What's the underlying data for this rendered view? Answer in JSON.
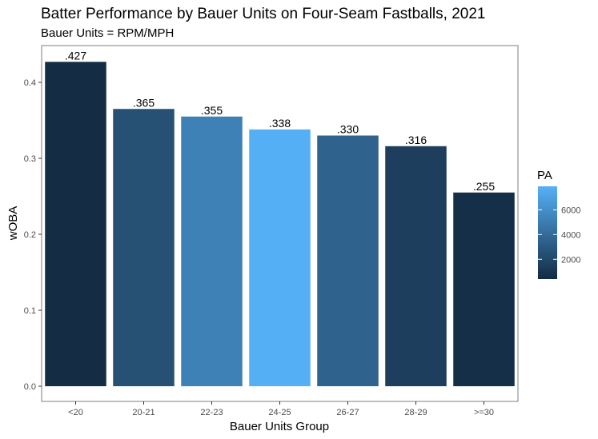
{
  "chart_data": {
    "type": "bar",
    "title": "Batter Performance by Bauer Units on Four-Seam Fastballs, 2021",
    "subtitle": "Bauer Units = RPM/MPH",
    "xlabel": "Bauer Units Group",
    "ylabel": "wOBA",
    "ylim": [
      0,
      0.45
    ],
    "y_ticks": [
      0.0,
      0.1,
      0.2,
      0.3,
      0.4
    ],
    "y_tick_labels": [
      "0.0",
      "0.1",
      "0.2",
      "0.3",
      "0.4"
    ],
    "grid": false,
    "categories": [
      "<20",
      "20-21",
      "22-23",
      "24-25",
      "26-27",
      "28-29",
      ">=30"
    ],
    "values": [
      0.427,
      0.365,
      0.355,
      0.338,
      0.33,
      0.316,
      0.255
    ],
    "data_labels": [
      ".427",
      ".365",
      ".355",
      ".338",
      ".330",
      ".316",
      ".255"
    ],
    "fill_variable": "PA",
    "fill_values": [
      500,
      2500,
      5200,
      7800,
      3500,
      1500,
      600
    ],
    "legend": {
      "title": "PA",
      "position": "right",
      "range": [
        400,
        7900
      ],
      "ticks": [
        2000,
        4000,
        6000
      ],
      "tick_labels": [
        "2000",
        "4000",
        "6000"
      ],
      "color_low": "#132B43",
      "color_high": "#56B1F7"
    }
  }
}
